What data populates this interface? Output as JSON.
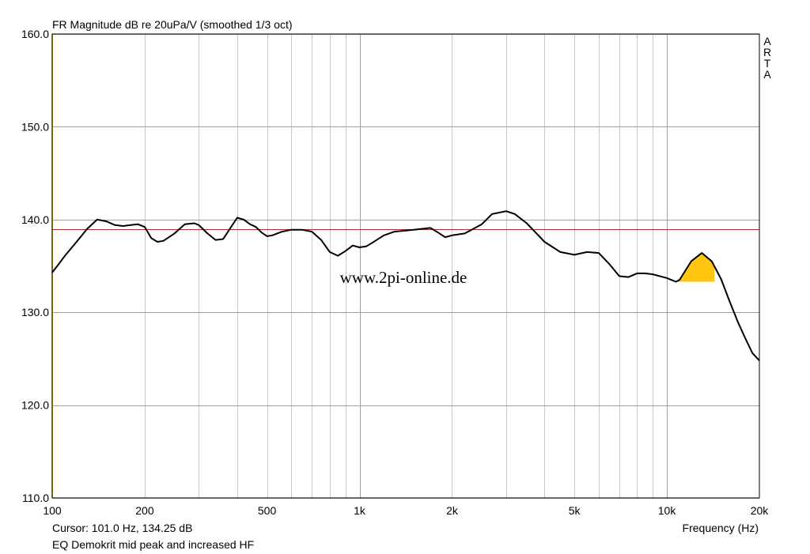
{
  "chart_data": {
    "type": "line",
    "title": "FR Magnitude dB re 20uPa/V (smoothed 1/3 oct)",
    "xlabel": "Frequency (Hz)",
    "ylabel": "",
    "x_scale": "log",
    "xlim": [
      100,
      20000
    ],
    "ylim": [
      110,
      160
    ],
    "grid": true,
    "y_ticks": [
      160,
      150,
      140,
      130,
      120,
      110
    ],
    "y_tick_labels": [
      "160.0",
      "150.0",
      "140.0",
      "130.0",
      "120.0",
      "110.0"
    ],
    "x_ticks": [
      100,
      200,
      500,
      1000,
      2000,
      5000,
      10000,
      20000
    ],
    "x_tick_labels": [
      "100",
      "200",
      "500",
      "1k",
      "2k",
      "5k",
      "10k",
      "20k"
    ],
    "reference_level": 139,
    "side_label": "ARTA",
    "watermark": "www.2pi-online.de",
    "cursor_text": "Cursor: 101.0 Hz, 134.25 dB",
    "footer_text": "EQ Demokrit mid peak and increased HF",
    "colors": {
      "curve": "#000000",
      "reference": "#b03030",
      "highlight": "#ffc511",
      "grid": "#a0a0a0",
      "marker": "#e8d020"
    },
    "highlight_region": {
      "x_start": 10700,
      "x_end": 14300,
      "floor_db": 133.3
    },
    "series": [
      {
        "x": [
          100,
          105,
          110,
          120,
          130,
          140,
          150,
          160,
          170,
          180,
          190,
          200,
          210,
          220,
          230,
          250,
          270,
          290,
          300,
          320,
          340,
          360,
          380,
          400,
          420,
          440,
          460,
          480,
          500,
          520,
          560,
          600,
          650,
          700,
          750,
          800,
          850,
          900,
          950,
          1000,
          1050,
          1100,
          1200,
          1300,
          1400,
          1500,
          1700,
          1800,
          1900,
          2000,
          2200,
          2500,
          2700,
          3000,
          3200,
          3500,
          4000,
          4500,
          5000,
          5500,
          6000,
          6500,
          7000,
          7500,
          8000,
          8500,
          9000,
          10000,
          10700,
          11000,
          12000,
          13000,
          14000,
          15000,
          16000,
          17000,
          18000,
          19000,
          20000
        ],
        "y": [
          134.3,
          135.2,
          136.1,
          137.6,
          139.0,
          140.0,
          139.8,
          139.4,
          139.3,
          139.4,
          139.5,
          139.2,
          138.0,
          137.6,
          137.7,
          138.5,
          139.5,
          139.6,
          139.4,
          138.5,
          137.8,
          137.9,
          139.1,
          140.2,
          140.0,
          139.5,
          139.2,
          138.6,
          138.2,
          138.3,
          138.7,
          138.9,
          138.9,
          138.7,
          137.8,
          136.5,
          136.1,
          136.6,
          137.2,
          137.0,
          137.1,
          137.5,
          138.3,
          138.7,
          138.8,
          138.9,
          139.1,
          138.6,
          138.1,
          138.3,
          138.5,
          139.5,
          140.6,
          140.9,
          140.6,
          139.6,
          137.6,
          136.5,
          136.2,
          136.5,
          136.4,
          135.2,
          133.9,
          133.8,
          134.2,
          134.2,
          134.1,
          133.7,
          133.3,
          133.5,
          135.5,
          136.4,
          135.5,
          133.6,
          131.2,
          129.0,
          127.2,
          125.6,
          124.8
        ]
      }
    ]
  }
}
